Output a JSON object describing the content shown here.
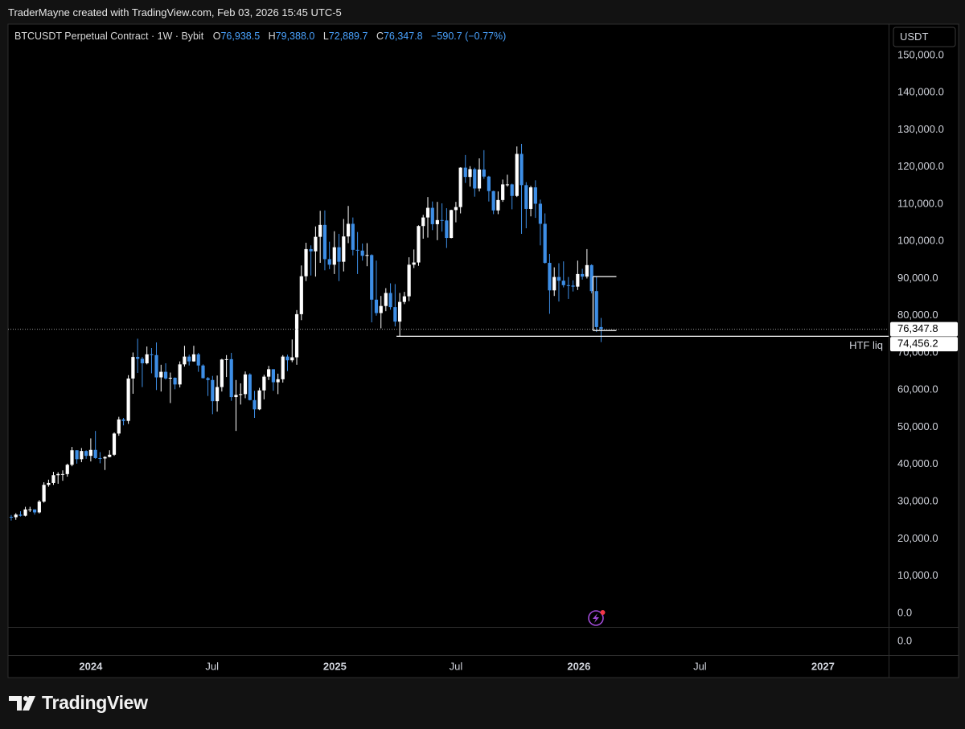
{
  "header": {
    "text": "TraderMayne created with TradingView.com, Feb 03, 2026 15:45 UTC-5"
  },
  "footer": {
    "brand": "TradingView"
  },
  "chart_data": {
    "type": "candlestick",
    "title": "BTCUSDT Perpetual Contract · 1W · Bybit",
    "currency": "USDT",
    "legend": [
      {
        "prefix": "O",
        "label": "76,938.5"
      },
      {
        "prefix": "H",
        "label": "79,388.0"
      },
      {
        "prefix": "L",
        "label": "72,889.7"
      },
      {
        "prefix": "C",
        "label": "76,347.8"
      }
    ],
    "change_label": "−590.7 (−0.77%)",
    "up_color": "#ffffff",
    "down_color": "#3d8ee6",
    "xlim": [
      2023.661,
      2027.269
    ],
    "ylim": [
      -3700,
      158400
    ],
    "xticks": [
      {
        "value": 2024,
        "label": "2024"
      },
      {
        "value": 2024.497,
        "label": "Jul"
      },
      {
        "value": 2025,
        "label": "2025"
      },
      {
        "value": 2025.496,
        "label": "Jul"
      },
      {
        "value": 2026,
        "label": "2026"
      },
      {
        "value": 2026.496,
        "label": "Jul"
      },
      {
        "value": 2027,
        "label": "2027"
      }
    ],
    "yticks": [
      {
        "value": 0,
        "label": "0.0"
      },
      {
        "value": 10000,
        "label": "10,000.0"
      },
      {
        "value": 20000,
        "label": "20,000.0"
      },
      {
        "value": 30000,
        "label": "30,000.0"
      },
      {
        "value": 40000,
        "label": "40,000.0"
      },
      {
        "value": 50000,
        "label": "50,000.0"
      },
      {
        "value": 60000,
        "label": "60,000.0"
      },
      {
        "value": 70000,
        "label": "70,000.0"
      },
      {
        "value": 80000,
        "label": "80,000.0"
      },
      {
        "value": 90000,
        "label": "90,000.0"
      },
      {
        "value": 100000,
        "label": "100,000.0"
      },
      {
        "value": 110000,
        "label": "110,000.0"
      },
      {
        "value": 120000,
        "label": "120,000.0"
      },
      {
        "value": 130000,
        "label": "130,000.0"
      },
      {
        "value": 140000,
        "label": "140,000.0"
      },
      {
        "value": 150000,
        "label": "150,000.0"
      }
    ],
    "lower_pane_ticks": [
      {
        "value": 0,
        "label": "0.0"
      }
    ],
    "last_price_label": "76,347.8",
    "levels": [
      {
        "value": 74456.2,
        "label": "74,456.2",
        "name": "HTF liq"
      }
    ],
    "range_drawing": {
      "high": 90500,
      "low": 76000
    },
    "x": [
      2023.674,
      2023.693,
      2023.712,
      2023.732,
      2023.751,
      2023.77,
      2023.789,
      2023.808,
      2023.827,
      2023.847,
      2023.866,
      2023.885,
      2023.904,
      2023.923,
      2023.943,
      2023.962,
      2023.981,
      2024.0,
      2024.019,
      2024.038,
      2024.058,
      2024.077,
      2024.096,
      2024.115,
      2024.134,
      2024.154,
      2024.173,
      2024.192,
      2024.211,
      2024.23,
      2024.249,
      2024.269,
      2024.288,
      2024.307,
      2024.326,
      2024.345,
      2024.365,
      2024.384,
      2024.403,
      2024.422,
      2024.441,
      2024.46,
      2024.48,
      2024.499,
      2024.518,
      2024.537,
      2024.556,
      2024.576,
      2024.595,
      2024.614,
      2024.633,
      2024.652,
      2024.671,
      2024.691,
      2024.71,
      2024.729,
      2024.748,
      2024.767,
      2024.787,
      2024.806,
      2024.825,
      2024.844,
      2024.863,
      2024.882,
      2024.902,
      2024.921,
      2024.94,
      2024.959,
      2024.978,
      2024.998,
      2025.017,
      2025.036,
      2025.055,
      2025.074,
      2025.093,
      2025.113,
      2025.132,
      2025.151,
      2025.17,
      2025.189,
      2025.209,
      2025.228,
      2025.247,
      2025.266,
      2025.285,
      2025.304,
      2025.324,
      2025.343,
      2025.362,
      2025.381,
      2025.4,
      2025.42,
      2025.439,
      2025.458,
      2025.477,
      2025.496,
      2025.515,
      2025.535,
      2025.554,
      2025.573,
      2025.592,
      2025.611,
      2025.631,
      2025.65,
      2025.669,
      2025.688,
      2025.707,
      2025.726,
      2025.746,
      2025.765,
      2025.784,
      2025.803,
      2025.822,
      2025.842,
      2025.861,
      2025.88,
      2025.899,
      2025.918,
      2025.937,
      2025.957,
      2025.976,
      2025.995,
      2026.014,
      2026.033,
      2026.052,
      2026.072,
      2026.091
    ],
    "open": [
      25900,
      25800,
      26500,
      26200,
      27900,
      27900,
      27100,
      30000,
      34500,
      35000,
      37100,
      37400,
      37400,
      39900,
      43800,
      41400,
      43600,
      42300,
      43900,
      41700,
      41600,
      42000,
      42600,
      48300,
      52100,
      51700,
      63100,
      68900,
      68400,
      67200,
      69600,
      69400,
      63400,
      64900,
      63100,
      63300,
      61500,
      66900,
      69000,
      67700,
      69600,
      66600,
      63200,
      62700,
      57000,
      60800,
      68200,
      68300,
      58100,
      58700,
      58900,
      64200,
      57300,
      54800,
      59900,
      63600,
      65600,
      62100,
      62900,
      69000,
      68000,
      68800,
      80400,
      90600,
      97900,
      97300,
      101200,
      104400,
      95200,
      93700,
      98400,
      94500,
      101300,
      104700,
      97700,
      97500,
      96100,
      96300,
      84300,
      80700,
      82600,
      86100,
      82300,
      78400,
      83700,
      85200,
      93700,
      94300,
      104100,
      106400,
      109000,
      104600,
      105700,
      105600,
      100900,
      108400,
      109200,
      119800,
      117300,
      119400,
      114200,
      119300,
      117400,
      113500,
      108300,
      111100,
      115300,
      115300,
      112200,
      123500,
      115100,
      108700,
      114500,
      110100,
      104700,
      94200,
      86800,
      90400,
      89400,
      88200,
      88100,
      87800,
      91200,
      90500,
      93600,
      86600,
      76938.5
    ],
    "high": [
      26400,
      26900,
      27400,
      28600,
      28600,
      27900,
      30400,
      35200,
      35900,
      38000,
      37900,
      38400,
      40200,
      44700,
      43800,
      44400,
      43800,
      47000,
      49000,
      43300,
      42200,
      43800,
      48600,
      52800,
      52500,
      64000,
      70100,
      73800,
      68900,
      71700,
      71300,
      72800,
      66800,
      67200,
      64700,
      63400,
      67700,
      71900,
      69500,
      71900,
      70000,
      66900,
      63500,
      63800,
      63900,
      68400,
      69400,
      70000,
      62700,
      61800,
      65000,
      64500,
      59800,
      60600,
      64100,
      66500,
      65600,
      64400,
      69400,
      69500,
      73600,
      81500,
      93500,
      99600,
      98900,
      104000,
      108200,
      108300,
      99900,
      102700,
      102000,
      106000,
      109500,
      106400,
      102500,
      99400,
      99500,
      96500,
      94800,
      85300,
      87400,
      88700,
      88500,
      86100,
      86400,
      95700,
      97800,
      104300,
      107100,
      111900,
      110700,
      110600,
      110200,
      108900,
      108500,
      110600,
      119900,
      123200,
      120200,
      119800,
      122300,
      124500,
      117600,
      113600,
      113400,
      116600,
      117900,
      115500,
      125500,
      126200,
      115900,
      114900,
      116400,
      111200,
      107500,
      96600,
      93000,
      94100,
      94600,
      90400,
      89500,
      94800,
      92600,
      97900,
      93800,
      90500,
      79388
    ],
    "low": [
      24900,
      25100,
      26000,
      26000,
      27200,
      26500,
      26800,
      29700,
      34000,
      34500,
      34800,
      35600,
      36700,
      39500,
      40200,
      40600,
      41500,
      40800,
      41500,
      40300,
      38500,
      41900,
      42300,
      47700,
      50500,
      50900,
      59000,
      64600,
      60800,
      66900,
      64500,
      60000,
      59600,
      62800,
      56500,
      60200,
      60700,
      66300,
      66600,
      67600,
      64900,
      63100,
      58400,
      53500,
      54200,
      59600,
      63500,
      57100,
      49000,
      56100,
      57800,
      57200,
      52500,
      54600,
      57500,
      62700,
      59800,
      58900,
      62000,
      65100,
      67500,
      66800,
      78800,
      89300,
      90800,
      90500,
      94200,
      92200,
      92500,
      91200,
      89300,
      91900,
      99500,
      96200,
      91200,
      94800,
      93300,
      78200,
      80000,
      76600,
      81200,
      81600,
      77100,
      74400,
      83100,
      83900,
      92800,
      93400,
      100700,
      101000,
      103000,
      100300,
      102600,
      98200,
      100800,
      105100,
      107500,
      115700,
      114700,
      112000,
      113400,
      116800,
      110700,
      107300,
      107300,
      110600,
      114700,
      108600,
      111900,
      102000,
      103500,
      106700,
      106300,
      98900,
      94000,
      80500,
      85300,
      83800,
      87600,
      84500,
      86500,
      86900,
      89700,
      90000,
      86000,
      75600,
      72889.7
    ],
    "close": [
      25800,
      26500,
      26200,
      27900,
      27900,
      27100,
      30000,
      34500,
      35000,
      37100,
      37400,
      37400,
      39900,
      43800,
      41400,
      43600,
      42300,
      43900,
      41700,
      41600,
      42000,
      42600,
      48300,
      52100,
      51700,
      63100,
      68900,
      68400,
      67200,
      69600,
      69400,
      63400,
      64900,
      63100,
      63300,
      61500,
      66900,
      69000,
      67700,
      69600,
      66600,
      63200,
      62700,
      57000,
      60800,
      68200,
      68300,
      58100,
      58700,
      58900,
      64200,
      57300,
      54800,
      59900,
      63600,
      65600,
      62100,
      62900,
      69000,
      68000,
      68800,
      80400,
      90600,
      97900,
      97300,
      101200,
      104400,
      95200,
      93700,
      98400,
      94500,
      101300,
      104700,
      97700,
      97500,
      96100,
      96300,
      84300,
      80700,
      82600,
      86100,
      82300,
      78400,
      83700,
      85200,
      93700,
      94300,
      104100,
      106400,
      109000,
      104600,
      105700,
      105600,
      100900,
      108400,
      109200,
      119800,
      117300,
      119400,
      114200,
      119300,
      117400,
      113500,
      108300,
      111100,
      115300,
      115300,
      112200,
      123500,
      115100,
      108700,
      114500,
      110100,
      104700,
      94200,
      86800,
      90400,
      89400,
      88200,
      88100,
      87800,
      91200,
      90500,
      93600,
      86600,
      76938.5,
      76347.8
    ]
  }
}
